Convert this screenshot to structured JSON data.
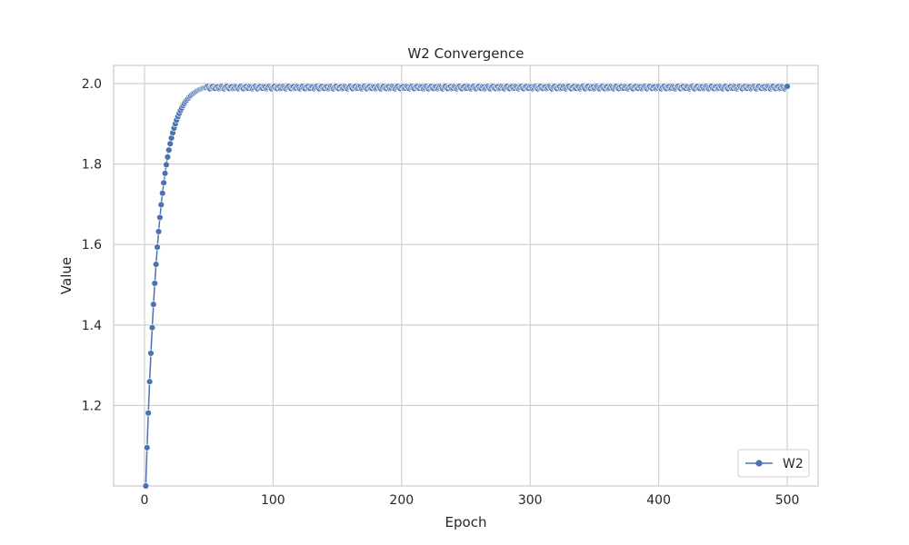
{
  "chart_data": {
    "type": "line",
    "title": "W2 Convergence",
    "xlabel": "Epoch",
    "ylabel": "Value",
    "xlim": [
      -24,
      524
    ],
    "ylim": [
      1.0,
      2.045
    ],
    "xticks": [
      0,
      100,
      200,
      300,
      400,
      500
    ],
    "xtick_labels": [
      "0",
      "100",
      "200",
      "300",
      "400",
      "500"
    ],
    "yticks": [
      1.2,
      1.4,
      1.6,
      1.8,
      2.0
    ],
    "ytick_labels": [
      "1.2",
      "1.4",
      "1.6",
      "1.8",
      "2.0"
    ],
    "grid": true,
    "legend_position": "bottom-right",
    "marker": "circle",
    "colors": {
      "series": "#4c72b0",
      "grid": "#cccccc",
      "axes_edge": "#cccccc",
      "text": "#262626"
    },
    "series": [
      {
        "name": "W2",
        "x_start": 1,
        "x_end": 500,
        "x_step": 1,
        "model": "value(epoch) = 2.0 - 1.0 * exp(-(epoch - 1) / 10), saturating at about 1.99 after epoch ~50"
      }
    ]
  }
}
